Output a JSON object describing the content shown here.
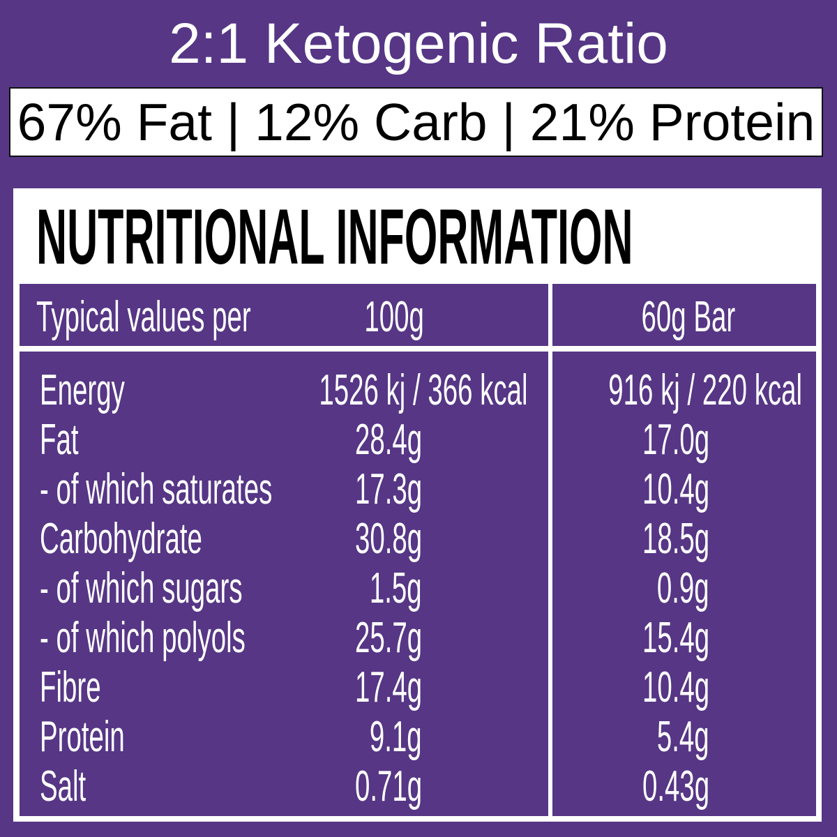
{
  "title": "2:1 Ketogenic Ratio",
  "ratio": "67% Fat | 12% Carb | 21% Protein",
  "heading": "NUTRITIONAL INFORMATION",
  "columns": {
    "label": "Typical values per",
    "per100": "100g",
    "perBar": "60g Bar"
  },
  "rows": [
    {
      "name": "Energy",
      "per100": "1526 kj / 366 kcal",
      "perBar": "916 kj / 220 kcal"
    },
    {
      "name": "Fat",
      "per100": "28.4g",
      "perBar": "17.0g"
    },
    {
      "name": "- of which saturates",
      "per100": "17.3g",
      "perBar": "10.4g"
    },
    {
      "name": "Carbohydrate",
      "per100": "30.8g",
      "perBar": "18.5g"
    },
    {
      "name": "- of which sugars",
      "per100": "1.5g",
      "perBar": "0.9g"
    },
    {
      "name": "- of which polyols",
      "per100": "25.7g",
      "perBar": "15.4g"
    },
    {
      "name": "Fibre",
      "per100": "17.4g",
      "perBar": "10.4g"
    },
    {
      "name": "Protein",
      "per100": "9.1g",
      "perBar": "5.4g"
    },
    {
      "name": "Salt",
      "per100": "0.71g",
      "perBar": "0.43g"
    }
  ],
  "colors": {
    "background": "#563685",
    "panel": "#ffffff"
  }
}
